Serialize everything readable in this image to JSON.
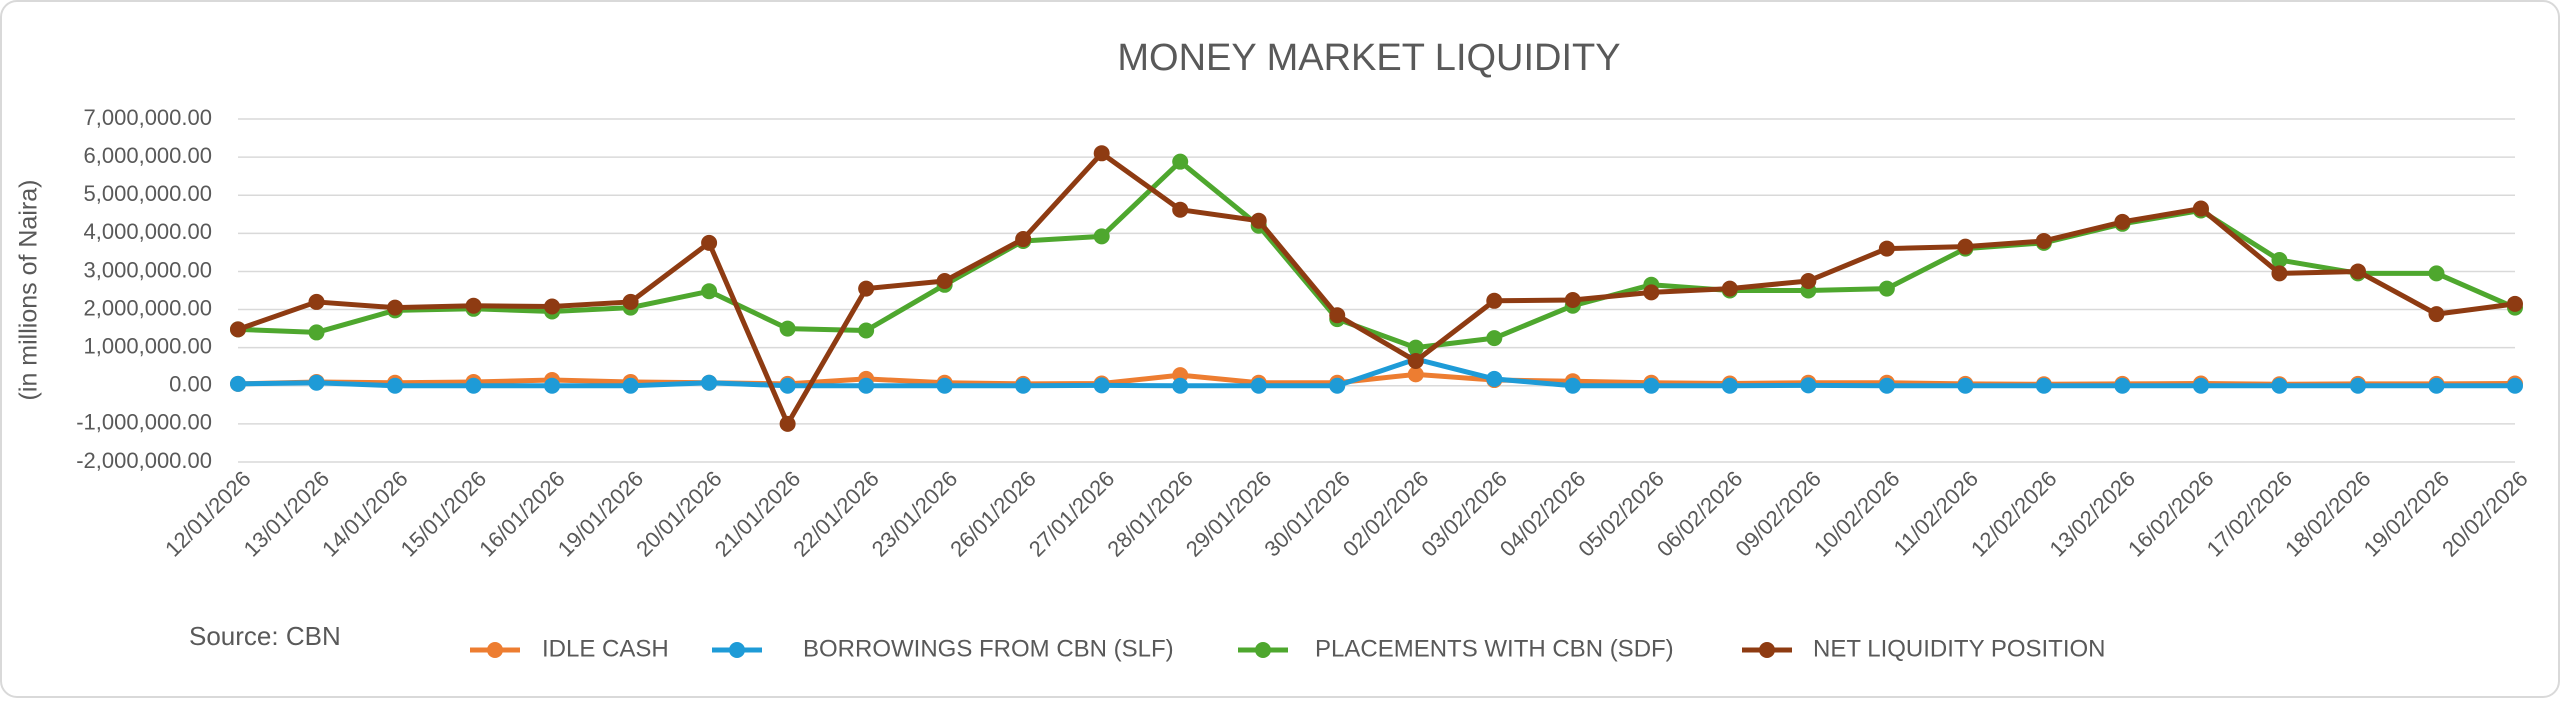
{
  "chart_data": {
    "type": "line",
    "title": "MONEY MARKET LIQUIDITY",
    "y_label": "(in millions of Naira)",
    "source": "Source: CBN",
    "categories": [
      "12/01/2026",
      "13/01/2026",
      "14/01/2026",
      "15/01/2026",
      "16/01/2026",
      "19/01/2026",
      "20/01/2026",
      "21/01/2026",
      "22/01/2026",
      "23/01/2026",
      "26/01/2026",
      "27/01/2026",
      "28/01/2026",
      "29/01/2026",
      "30/01/2026",
      "02/02/2026",
      "03/02/2026",
      "04/02/2026",
      "05/02/2026",
      "06/02/2026",
      "09/02/2026",
      "10/02/2026",
      "11/02/2026",
      "12/02/2026",
      "13/02/2026",
      "16/02/2026",
      "17/02/2026",
      "18/02/2026",
      "19/02/2026",
      "20/02/2026"
    ],
    "series": [
      {
        "name": "IDLE CASH",
        "color": "#ED7D31",
        "values": [
          50000,
          100000,
          80000,
          100000,
          150000,
          100000,
          80000,
          50000,
          180000,
          80000,
          50000,
          60000,
          280000,
          80000,
          80000,
          300000,
          150000,
          120000,
          80000,
          60000,
          80000,
          80000,
          50000,
          40000,
          50000,
          60000,
          40000,
          50000,
          50000,
          60000
        ]
      },
      {
        "name": "BORROWINGS FROM CBN (SLF)",
        "color": "#1E9BD7",
        "values": [
          50000,
          80000,
          0,
          0,
          0,
          0,
          80000,
          0,
          0,
          0,
          0,
          10000,
          0,
          0,
          0,
          700000,
          180000,
          0,
          0,
          0,
          10000,
          0,
          0,
          0,
          0,
          0,
          0,
          0,
          0,
          0
        ]
      },
      {
        "name": "PLACEMENTS WITH CBN (SDF)",
        "color": "#4EA72E",
        "values": [
          1480000,
          1400000,
          1980000,
          2020000,
          1950000,
          2050000,
          2480000,
          1500000,
          1450000,
          2650000,
          3800000,
          3920000,
          5880000,
          4200000,
          1750000,
          1000000,
          1250000,
          2100000,
          2650000,
          2500000,
          2500000,
          2550000,
          3600000,
          3750000,
          4250000,
          4600000,
          3300000,
          2950000,
          2950000,
          2050000
        ]
      },
      {
        "name": "NET LIQUIDITY POSITION",
        "color": "#8E3B12",
        "values": [
          1480000,
          2200000,
          2050000,
          2100000,
          2080000,
          2200000,
          3750000,
          -1000000,
          2550000,
          2750000,
          3850000,
          6100000,
          4620000,
          4330000,
          1850000,
          650000,
          2230000,
          2250000,
          2450000,
          2550000,
          2750000,
          3600000,
          3650000,
          3800000,
          4300000,
          4650000,
          2950000,
          3000000,
          1880000,
          2150000
        ]
      }
    ],
    "ylim": [
      -2000000,
      7000000
    ],
    "yticks": [
      {
        "value": -2000000,
        "label": "-2,000,000.00"
      },
      {
        "value": -1000000,
        "label": "-1,000,000.00"
      },
      {
        "value": 0,
        "label": "0.00"
      },
      {
        "value": 1000000,
        "label": "1,000,000.00"
      },
      {
        "value": 2000000,
        "label": "2,000,000.00"
      },
      {
        "value": 3000000,
        "label": "3,000,000.00"
      },
      {
        "value": 4000000,
        "label": "4,000,000.00"
      },
      {
        "value": 5000000,
        "label": "5,000,000.00"
      },
      {
        "value": 6000000,
        "label": "6,000,000.00"
      },
      {
        "value": 7000000,
        "label": "7,000,000.00"
      }
    ],
    "grid": true,
    "legend": "bottom"
  }
}
